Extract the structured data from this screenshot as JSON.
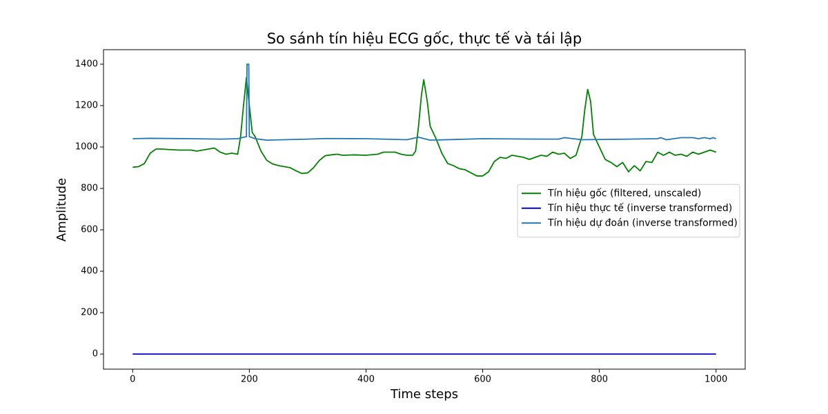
{
  "chart_data": {
    "type": "line",
    "title": "So sánh tín hiệu ECG gốc, thực tế và tái lập",
    "x_label": "Time steps",
    "y_label": "Amplitude",
    "xlim": [
      -50,
      1050
    ],
    "ylim": [
      -73,
      1470
    ],
    "xticks": [
      0,
      200,
      400,
      600,
      800,
      1000
    ],
    "yticks": [
      0,
      200,
      400,
      600,
      800,
      1000,
      1200,
      1400
    ],
    "grid": false,
    "legend_position": "right",
    "series": [
      {
        "name": "Tín hiệu gốc (filtered, unscaled)",
        "color": "#008000",
        "x": [
          0,
          10,
          20,
          30,
          40,
          50,
          60,
          80,
          100,
          110,
          130,
          140,
          150,
          160,
          170,
          180,
          185,
          190,
          195,
          200,
          205,
          210,
          220,
          230,
          240,
          250,
          260,
          270,
          280,
          290,
          300,
          310,
          320,
          330,
          340,
          350,
          360,
          380,
          400,
          420,
          430,
          450,
          460,
          470,
          480,
          485,
          490,
          495,
          499,
          505,
          510,
          520,
          530,
          540,
          550,
          560,
          570,
          580,
          590,
          600,
          610,
          620,
          630,
          640,
          650,
          660,
          670,
          680,
          690,
          700,
          710,
          720,
          730,
          740,
          750,
          760,
          770,
          775,
          780,
          785,
          790,
          800,
          810,
          820,
          830,
          840,
          850,
          860,
          870,
          880,
          890,
          900,
          910,
          920,
          930,
          940,
          950,
          960,
          970,
          980,
          990,
          1000
        ],
        "values": [
          902,
          905,
          920,
          970,
          990,
          990,
          988,
          985,
          985,
          980,
          990,
          995,
          975,
          965,
          970,
          965,
          1050,
          1200,
          1335,
          1200,
          1070,
          1050,
          980,
          935,
          918,
          910,
          905,
          900,
          885,
          872,
          875,
          900,
          935,
          958,
          962,
          965,
          960,
          962,
          960,
          965,
          975,
          975,
          965,
          960,
          960,
          980,
          1100,
          1250,
          1325,
          1220,
          1100,
          1040,
          970,
          920,
          910,
          895,
          890,
          875,
          860,
          860,
          880,
          930,
          950,
          945,
          960,
          955,
          950,
          940,
          950,
          960,
          955,
          975,
          965,
          970,
          945,
          960,
          1050,
          1180,
          1278,
          1220,
          1060,
          1000,
          940,
          925,
          905,
          925,
          880,
          910,
          885,
          930,
          925,
          975,
          960,
          975,
          960,
          965,
          955,
          975,
          965,
          975,
          985,
          975
        ]
      },
      {
        "name": "Tín hiệu thực tế (inverse transformed)",
        "color": "#0000cd",
        "x": [
          0,
          100,
          200,
          300,
          400,
          500,
          600,
          700,
          800,
          900,
          1000
        ],
        "values": [
          0,
          0,
          0,
          0,
          0,
          0,
          0,
          0,
          0,
          0,
          0
        ]
      },
      {
        "name": "Tín hiệu dự đoán (inverse transformed)",
        "color": "#1f77b4",
        "x": [
          0,
          30,
          100,
          150,
          180,
          195,
          196,
          199,
          200,
          210,
          230,
          300,
          330,
          400,
          470,
          490,
          510,
          600,
          700,
          730,
          740,
          770,
          850,
          900,
          905,
          915,
          940,
          960,
          970,
          980,
          990,
          995,
          1000
        ],
        "values": [
          1040,
          1042,
          1040,
          1038,
          1040,
          1050,
          1400,
          1400,
          1050,
          1040,
          1033,
          1038,
          1041,
          1040,
          1035,
          1047,
          1033,
          1040,
          1038,
          1038,
          1045,
          1035,
          1038,
          1040,
          1045,
          1035,
          1045,
          1045,
          1040,
          1045,
          1040,
          1045,
          1040
        ]
      }
    ]
  }
}
